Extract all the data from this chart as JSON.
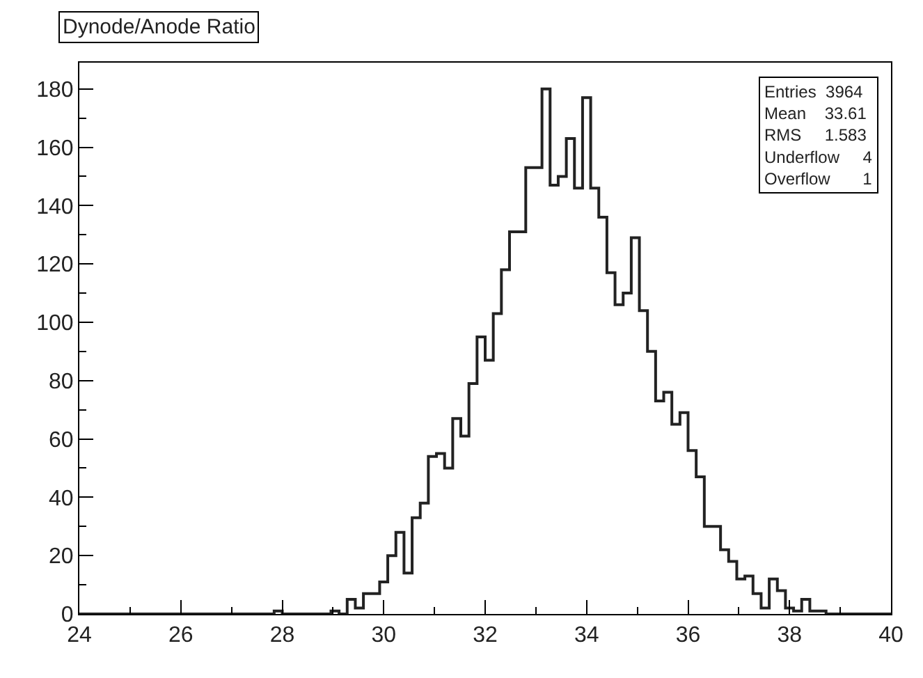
{
  "chart_data": {
    "type": "histogram",
    "title": "Dynode/Anode Ratio",
    "bins": [
      24,
      24.16,
      24.32,
      24.48,
      24.64,
      24.8,
      24.96,
      25.12,
      25.28,
      25.44,
      25.6,
      25.76,
      25.92,
      26.08,
      26.24,
      26.4,
      26.56,
      26.72,
      26.88,
      27.04,
      27.2,
      27.36,
      27.52,
      27.68,
      27.84,
      28,
      28.16,
      28.32,
      28.48,
      28.64,
      28.8,
      28.96,
      29.12,
      29.28,
      29.44,
      29.6,
      29.76,
      29.92,
      30.08,
      30.24,
      30.4,
      30.56,
      30.72,
      30.88,
      31.04,
      31.2,
      31.36,
      31.52,
      31.68,
      31.84,
      32,
      32.16,
      32.32,
      32.48,
      32.64,
      32.8,
      32.96,
      33.12,
      33.28,
      33.44,
      33.6,
      33.76,
      33.92,
      34.08,
      34.24,
      34.4,
      34.56,
      34.72,
      34.88,
      35.04,
      35.2,
      35.36,
      35.52,
      35.68,
      35.84,
      36,
      36.16,
      36.32,
      36.48,
      36.64,
      36.8,
      36.96,
      37.12,
      37.28,
      37.44,
      37.6,
      37.76,
      37.92,
      38.08,
      38.24,
      38.4,
      38.56,
      38.72,
      38.88,
      39.04,
      39.2,
      39.36,
      39.52,
      39.68,
      39.84,
      40
    ],
    "values": [
      0,
      0,
      0,
      0,
      0,
      0,
      0,
      0,
      0,
      0,
      0,
      0,
      0,
      0,
      0,
      0,
      0,
      0,
      0,
      0,
      0,
      0,
      0,
      0,
      1,
      0,
      0,
      0,
      0,
      0,
      0,
      1,
      0,
      5,
      2,
      7,
      7,
      11,
      20,
      28,
      14,
      33,
      38,
      54,
      55,
      50,
      67,
      61,
      79,
      95,
      87,
      103,
      118,
      131,
      131,
      153,
      153,
      180,
      147,
      150,
      163,
      146,
      177,
      146,
      136,
      117,
      106,
      110,
      129,
      104,
      90,
      73,
      76,
      65,
      69,
      56,
      47,
      30,
      30,
      22,
      18,
      12,
      13,
      7,
      2,
      12,
      8,
      2,
      1,
      5,
      1,
      1,
      0,
      0,
      0,
      0,
      0,
      0,
      0,
      0
    ],
    "color": "#222222",
    "xlim": [
      24,
      40
    ],
    "xticks": [
      24,
      26,
      28,
      30,
      32,
      34,
      36,
      38,
      40
    ],
    "ylim": [
      0,
      189
    ],
    "yticks": [
      0,
      20,
      40,
      60,
      80,
      100,
      120,
      140,
      160,
      180
    ],
    "annotations": [
      "Entries  3964",
      "Mean    33.61",
      "RMS     1.583",
      "Underflow     4",
      "Overflow       1"
    ]
  }
}
